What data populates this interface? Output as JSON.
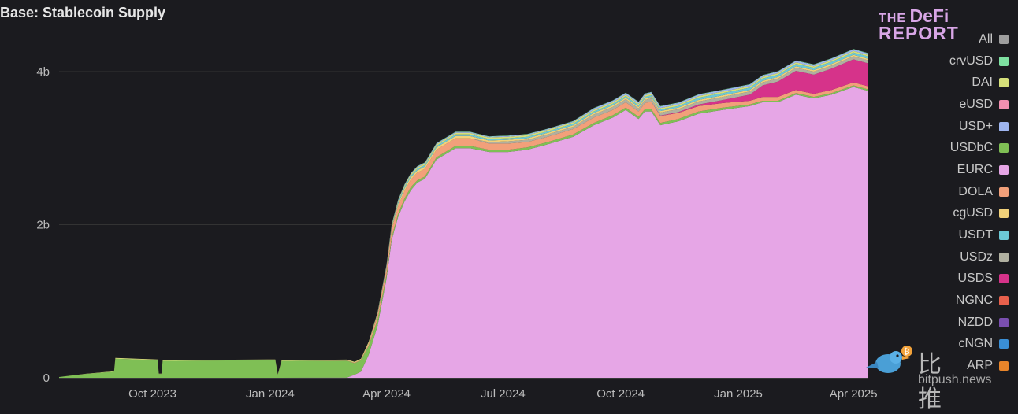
{
  "page": {
    "title": "Base: Stablecoin Supply"
  },
  "logo": {
    "line1": "THE DeFi",
    "line2": "REPORT"
  },
  "watermark": {
    "cn": "比推",
    "en": "bitpush.news"
  },
  "chart_data": {
    "type": "area",
    "stacked": true,
    "title": "Base: Stablecoin Supply",
    "xlabel": "",
    "ylabel": "",
    "ylim": [
      0,
      4.0
    ],
    "y_unit": "b",
    "y_ticks": [
      {
        "v": 0,
        "label": "0"
      },
      {
        "v": 2,
        "label": "2b"
      },
      {
        "v": 4,
        "label": "4b"
      }
    ],
    "x_range": [
      "2023-07-20",
      "2025-04-12"
    ],
    "x_ticks": [
      "Oct 2023",
      "Jan 2024",
      "Apr 2024",
      "Jul 2024",
      "Oct 2024",
      "Jan 2025",
      "Apr 2025"
    ],
    "x_tick_dates": [
      "2023-10-01",
      "2024-01-01",
      "2024-04-01",
      "2024-07-01",
      "2024-10-01",
      "2025-01-01",
      "2025-04-01"
    ],
    "grid": "horizontal",
    "legend_position": "right",
    "legend": [
      {
        "name": "All",
        "color": "#9e9e9e"
      },
      {
        "name": "crvUSD",
        "color": "#7ee0a1"
      },
      {
        "name": "DAI",
        "color": "#d6e07a"
      },
      {
        "name": "eUSD",
        "color": "#f28fb0"
      },
      {
        "name": "USD+",
        "color": "#9fb6f0"
      },
      {
        "name": "USDbC",
        "color": "#7fbf55"
      },
      {
        "name": "EURC",
        "color": "#e6a6e6"
      },
      {
        "name": "DOLA",
        "color": "#f2a07a"
      },
      {
        "name": "cgUSD",
        "color": "#f2d27a"
      },
      {
        "name": "USDT",
        "color": "#6cc9d6"
      },
      {
        "name": "USDz",
        "color": "#b0b0a0"
      },
      {
        "name": "USDS",
        "color": "#d6338a"
      },
      {
        "name": "NGNC",
        "color": "#e8604c"
      },
      {
        "name": "NZDD",
        "color": "#7a4fb0"
      },
      {
        "name": "cNGN",
        "color": "#3a8fd6"
      },
      {
        "name": "ARP",
        "color": "#e8852a"
      }
    ],
    "x": [
      "2023-07-20",
      "2023-08-10",
      "2023-09-01",
      "2023-09-02",
      "2023-10-05",
      "2023-10-06",
      "2023-10-08",
      "2023-10-09",
      "2023-12-30",
      "2024-01-05",
      "2024-01-07",
      "2024-01-10",
      "2024-03-01",
      "2024-03-07",
      "2024-03-12",
      "2024-03-18",
      "2024-03-25",
      "2024-04-01",
      "2024-04-05",
      "2024-04-10",
      "2024-04-15",
      "2024-04-20",
      "2024-04-25",
      "2024-05-01",
      "2024-05-10",
      "2024-05-20",
      "2024-05-25",
      "2024-06-05",
      "2024-06-20",
      "2024-07-05",
      "2024-07-20",
      "2024-08-05",
      "2024-08-25",
      "2024-09-10",
      "2024-09-25",
      "2024-10-05",
      "2024-10-15",
      "2024-10-20",
      "2024-10-25",
      "2024-11-01",
      "2024-11-15",
      "2024-12-01",
      "2024-12-20",
      "2025-01-10",
      "2025-01-20",
      "2025-02-01",
      "2025-02-15",
      "2025-03-01",
      "2025-03-15",
      "2025-04-01",
      "2025-04-12"
    ],
    "series": [
      {
        "name": "EURC",
        "values": [
          0,
          0,
          0,
          0,
          0,
          0,
          0,
          0,
          0,
          0,
          0,
          0,
          0.003,
          0.04,
          0.08,
          0.3,
          0.68,
          1.3,
          1.8,
          2.1,
          2.3,
          2.45,
          2.55,
          2.6,
          2.85,
          2.95,
          3.0,
          3.0,
          2.95,
          2.95,
          2.98,
          3.05,
          3.15,
          3.3,
          3.4,
          3.5,
          3.38,
          3.48,
          3.48,
          3.3,
          3.35,
          3.45,
          3.5,
          3.55,
          3.6,
          3.6,
          3.7,
          3.65,
          3.7,
          3.8,
          3.75
        ]
      },
      {
        "name": "USDbC",
        "values": [
          0.01,
          0.05,
          0.08,
          0.25,
          0.23,
          0.05,
          0.05,
          0.22,
          0.23,
          0.23,
          0.04,
          0.22,
          0.22,
          0.15,
          0.15,
          0.12,
          0.08,
          0.05,
          0.04,
          0.04,
          0.04,
          0.04,
          0.03,
          0.03,
          0.03,
          0.03,
          0.03,
          0.03,
          0.03,
          0.03,
          0.03,
          0.03,
          0.03,
          0.03,
          0.03,
          0.03,
          0.03,
          0.03,
          0.03,
          0.03,
          0.03,
          0.03,
          0.03,
          0.02,
          0.02,
          0.02,
          0.02,
          0.02,
          0.02,
          0.02,
          0.02
        ]
      },
      {
        "name": "DOLA",
        "values": [
          0,
          0,
          0,
          0,
          0,
          0,
          0,
          0,
          0,
          0,
          0,
          0,
          0.005,
          0.008,
          0.01,
          0.03,
          0.06,
          0.08,
          0.1,
          0.1,
          0.1,
          0.1,
          0.1,
          0.1,
          0.1,
          0.1,
          0.1,
          0.1,
          0.08,
          0.08,
          0.07,
          0.07,
          0.07,
          0.07,
          0.07,
          0.07,
          0.07,
          0.08,
          0.1,
          0.09,
          0.08,
          0.07,
          0.06,
          0.05,
          0.05,
          0.05,
          0.04,
          0.04,
          0.04,
          0.04,
          0.04
        ]
      },
      {
        "name": "USDS",
        "values": [
          0,
          0,
          0,
          0,
          0,
          0,
          0,
          0,
          0,
          0,
          0,
          0,
          0,
          0,
          0,
          0,
          0,
          0,
          0,
          0,
          0,
          0,
          0,
          0,
          0,
          0,
          0,
          0,
          0,
          0,
          0,
          0,
          0,
          0,
          0,
          0,
          0,
          0,
          0,
          0.005,
          0.01,
          0.02,
          0.04,
          0.08,
          0.15,
          0.2,
          0.25,
          0.25,
          0.28,
          0.3,
          0.3
        ]
      },
      {
        "name": "USDz",
        "values": [
          0,
          0,
          0,
          0,
          0,
          0,
          0,
          0,
          0,
          0,
          0,
          0,
          0,
          0,
          0,
          0,
          0,
          0,
          0,
          0,
          0,
          0,
          0,
          0,
          0,
          0,
          0,
          0,
          0.02,
          0.03,
          0.03,
          0.03,
          0.03,
          0.04,
          0.04,
          0.04,
          0.04,
          0.04,
          0.04,
          0.04,
          0.04,
          0.04,
          0.04,
          0.04,
          0.04,
          0.04,
          0.04,
          0.04,
          0.04,
          0.04,
          0.04
        ]
      },
      {
        "name": "cgUSD",
        "values": [
          0,
          0,
          0,
          0,
          0,
          0,
          0,
          0,
          0,
          0,
          0,
          0,
          0,
          0,
          0,
          0,
          0.005,
          0.01,
          0.02,
          0.03,
          0.03,
          0.03,
          0.03,
          0.03,
          0.03,
          0.03,
          0.03,
          0.03,
          0.02,
          0.02,
          0.02,
          0.02,
          0.02,
          0.02,
          0.02,
          0.02,
          0.02,
          0.02,
          0.02,
          0.02,
          0.02,
          0.02,
          0.02,
          0.02,
          0.02,
          0.02,
          0.02,
          0.02,
          0.02,
          0.02,
          0.02
        ]
      },
      {
        "name": "USDT",
        "values": [
          0,
          0,
          0,
          0,
          0,
          0,
          0,
          0,
          0,
          0,
          0,
          0,
          0,
          0,
          0,
          0,
          0.005,
          0.01,
          0.01,
          0.02,
          0.02,
          0.02,
          0.02,
          0.02,
          0.02,
          0.02,
          0.02,
          0.02,
          0.02,
          0.02,
          0.02,
          0.02,
          0.02,
          0.02,
          0.02,
          0.02,
          0.02,
          0.02,
          0.02,
          0.02,
          0.02,
          0.03,
          0.03,
          0.03,
          0.03,
          0.03,
          0.03,
          0.03,
          0.03,
          0.03,
          0.03
        ]
      },
      {
        "name": "DAI",
        "values": [
          0,
          0.002,
          0.005,
          0.01,
          0.01,
          0.005,
          0.005,
          0.01,
          0.01,
          0.01,
          0.005,
          0.01,
          0.01,
          0.01,
          0.01,
          0.02,
          0.02,
          0.02,
          0.02,
          0.02,
          0.02,
          0.02,
          0.02,
          0.02,
          0.02,
          0.02,
          0.02,
          0.02,
          0.02,
          0.02,
          0.02,
          0.02,
          0.02,
          0.02,
          0.02,
          0.02,
          0.02,
          0.02,
          0.02,
          0.02,
          0.02,
          0.02,
          0.02,
          0.02,
          0.02,
          0.02,
          0.02,
          0.02,
          0.02,
          0.02,
          0.02
        ]
      },
      {
        "name": "USD+",
        "values": [
          0,
          0,
          0,
          0,
          0,
          0,
          0,
          0,
          0,
          0,
          0,
          0,
          0,
          0,
          0,
          0,
          0.005,
          0.01,
          0.01,
          0.01,
          0.01,
          0.01,
          0.01,
          0.01,
          0.01,
          0.01,
          0.01,
          0.01,
          0.01,
          0.01,
          0.01,
          0.01,
          0.01,
          0.02,
          0.02,
          0.02,
          0.02,
          0.02,
          0.02,
          0.02,
          0.02,
          0.02,
          0.02,
          0.02,
          0.02,
          0.02,
          0.02,
          0.02,
          0.02,
          0.02,
          0.02
        ]
      },
      {
        "name": "crvUSD",
        "values": [
          0,
          0,
          0,
          0,
          0,
          0,
          0,
          0,
          0,
          0,
          0,
          0,
          0,
          0,
          0,
          0,
          0,
          0.002,
          0.005,
          0.005,
          0.005,
          0.005,
          0.005,
          0.005,
          0.005,
          0.005,
          0.005,
          0.005,
          0.005,
          0.005,
          0.005,
          0.005,
          0.005,
          0.005,
          0.005,
          0.005,
          0.005,
          0.005,
          0.005,
          0.005,
          0.005,
          0.005,
          0.005,
          0.005,
          0.005,
          0.005,
          0.005,
          0.005,
          0.005,
          0.005,
          0.005
        ]
      }
    ]
  }
}
